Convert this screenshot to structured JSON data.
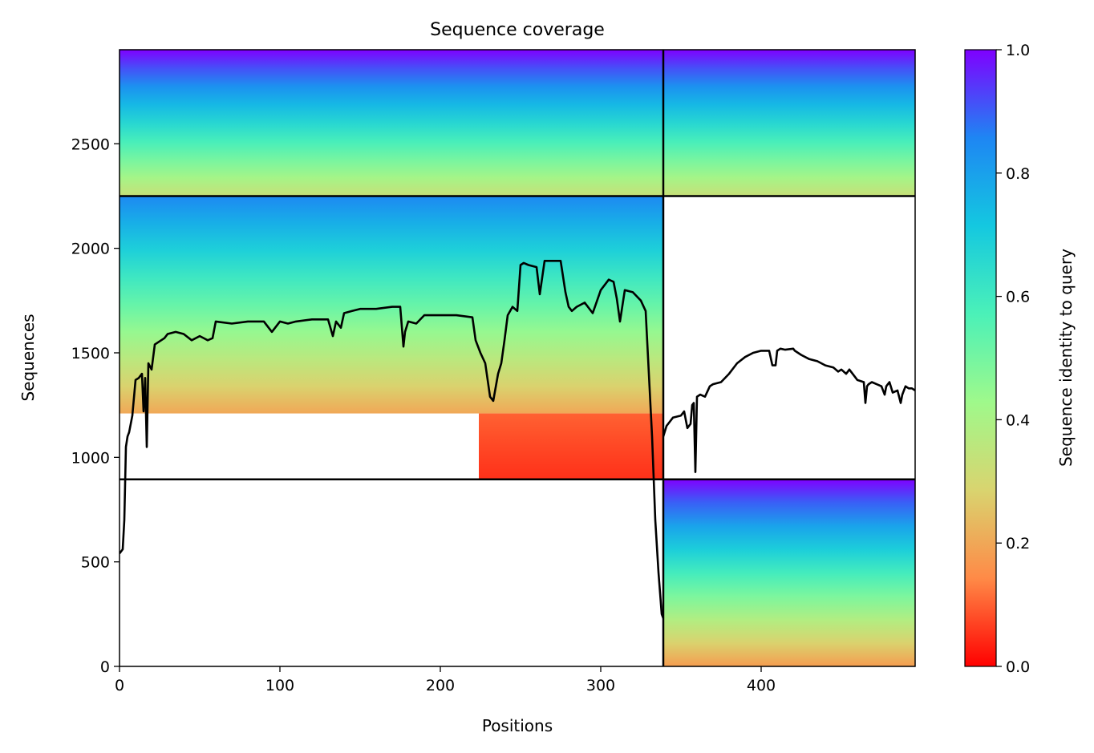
{
  "chart_data": {
    "type": "heatmap",
    "title": "Sequence coverage",
    "xlabel": "Positions",
    "ylabel": "Sequences",
    "xlim": [
      0,
      496
    ],
    "ylim": [
      0,
      2950
    ],
    "x_ticks": [
      0,
      100,
      200,
      300,
      400
    ],
    "y_ticks": [
      0,
      500,
      1000,
      1500,
      2000,
      2500
    ],
    "colorbar": {
      "label": "Sequence identity to query",
      "range": [
        0,
        1
      ],
      "ticks": [
        "0.0",
        "0.2",
        "0.4",
        "0.6",
        "0.8",
        "1.0"
      ],
      "colormap": "rainbow_r",
      "stops": [
        "#ff0000",
        "#ff8a47",
        "#d9d46f",
        "#9ff98b",
        "#4bf1b8",
        "#14c8e0",
        "#1e86f3",
        "#7f00ff"
      ]
    },
    "domain_boundaries": {
      "x": [
        339
      ],
      "y": [
        895,
        2250
      ]
    },
    "blocks": [
      {
        "x": [
          0,
          339
        ],
        "y": [
          2250,
          2950
        ],
        "identity_bottom": 0.33,
        "identity_top": 1.0
      },
      {
        "x": [
          339,
          496
        ],
        "y": [
          2250,
          2950
        ],
        "identity_bottom": 0.33,
        "identity_top": 1.0
      },
      {
        "x": [
          0,
          339
        ],
        "y": [
          1210,
          2250
        ],
        "identity_bottom": 0.2,
        "identity_top": 0.85
      },
      {
        "x": [
          224,
          339
        ],
        "y": [
          895,
          1210
        ],
        "identity_bottom": 0.05,
        "identity_top": 0.1
      },
      {
        "x": [
          339,
          496
        ],
        "y": [
          0,
          895
        ],
        "identity_bottom": 0.18,
        "identity_top": 1.0
      }
    ],
    "coverage_series": [
      {
        "x": [
          0,
          2,
          3,
          4,
          5,
          6,
          8,
          10,
          12,
          14,
          15,
          16,
          17,
          18,
          20,
          22,
          24,
          26,
          28,
          30,
          35,
          40,
          45,
          50,
          55,
          58,
          60,
          70,
          80,
          90,
          95,
          100,
          105,
          110,
          120,
          130,
          133,
          135,
          138,
          140,
          145,
          150,
          160,
          170,
          175,
          177,
          178,
          180,
          185,
          190,
          200,
          210,
          220,
          222,
          225,
          228,
          231,
          233,
          236,
          238,
          240,
          242,
          245,
          248,
          250,
          252,
          255,
          260,
          262,
          265,
          270,
          275,
          278,
          280,
          282,
          285,
          290,
          295,
          300,
          305,
          308,
          310,
          312,
          315,
          320,
          325,
          328,
          330,
          332,
          334,
          336,
          338,
          339
        ],
        "y": [
          540,
          560,
          700,
          1050,
          1100,
          1120,
          1200,
          1370,
          1380,
          1400,
          1220,
          1380,
          1050,
          1450,
          1420,
          1540,
          1550,
          1560,
          1570,
          1590,
          1600,
          1590,
          1560,
          1580,
          1560,
          1570,
          1650,
          1640,
          1650,
          1650,
          1600,
          1650,
          1640,
          1650,
          1660,
          1660,
          1580,
          1650,
          1620,
          1690,
          1700,
          1710,
          1710,
          1720,
          1720,
          1530,
          1600,
          1650,
          1640,
          1680,
          1680,
          1680,
          1670,
          1560,
          1500,
          1450,
          1290,
          1270,
          1400,
          1450,
          1560,
          1680,
          1720,
          1700,
          1920,
          1930,
          1920,
          1910,
          1780,
          1940,
          1940,
          1940,
          1790,
          1720,
          1700,
          1720,
          1740,
          1690,
          1800,
          1850,
          1840,
          1760,
          1650,
          1800,
          1790,
          1750,
          1700,
          1400,
          1100,
          700,
          450,
          250,
          230
        ]
      },
      {
        "x": [
          339,
          341,
          343,
          345,
          350,
          352,
          354,
          356,
          357,
          358,
          359,
          360,
          362,
          365,
          368,
          370,
          375,
          380,
          385,
          390,
          395,
          400,
          405,
          407,
          409,
          410,
          412,
          415,
          420,
          421,
          425,
          430,
          435,
          440,
          445,
          448,
          450,
          453,
          455,
          458,
          460,
          464,
          465,
          466,
          467,
          469,
          472,
          475,
          477,
          478,
          479,
          480,
          482,
          485,
          487,
          488,
          490,
          492,
          494,
          496
        ],
        "y": [
          1100,
          1150,
          1170,
          1190,
          1200,
          1220,
          1140,
          1160,
          1250,
          1260,
          930,
          1290,
          1300,
          1290,
          1340,
          1350,
          1360,
          1400,
          1450,
          1480,
          1500,
          1510,
          1510,
          1440,
          1440,
          1510,
          1520,
          1515,
          1520,
          1510,
          1490,
          1470,
          1460,
          1440,
          1430,
          1410,
          1420,
          1400,
          1420,
          1390,
          1370,
          1360,
          1260,
          1340,
          1350,
          1360,
          1350,
          1340,
          1300,
          1340,
          1350,
          1360,
          1310,
          1320,
          1260,
          1300,
          1340,
          1330,
          1330,
          1320
        ]
      }
    ]
  }
}
